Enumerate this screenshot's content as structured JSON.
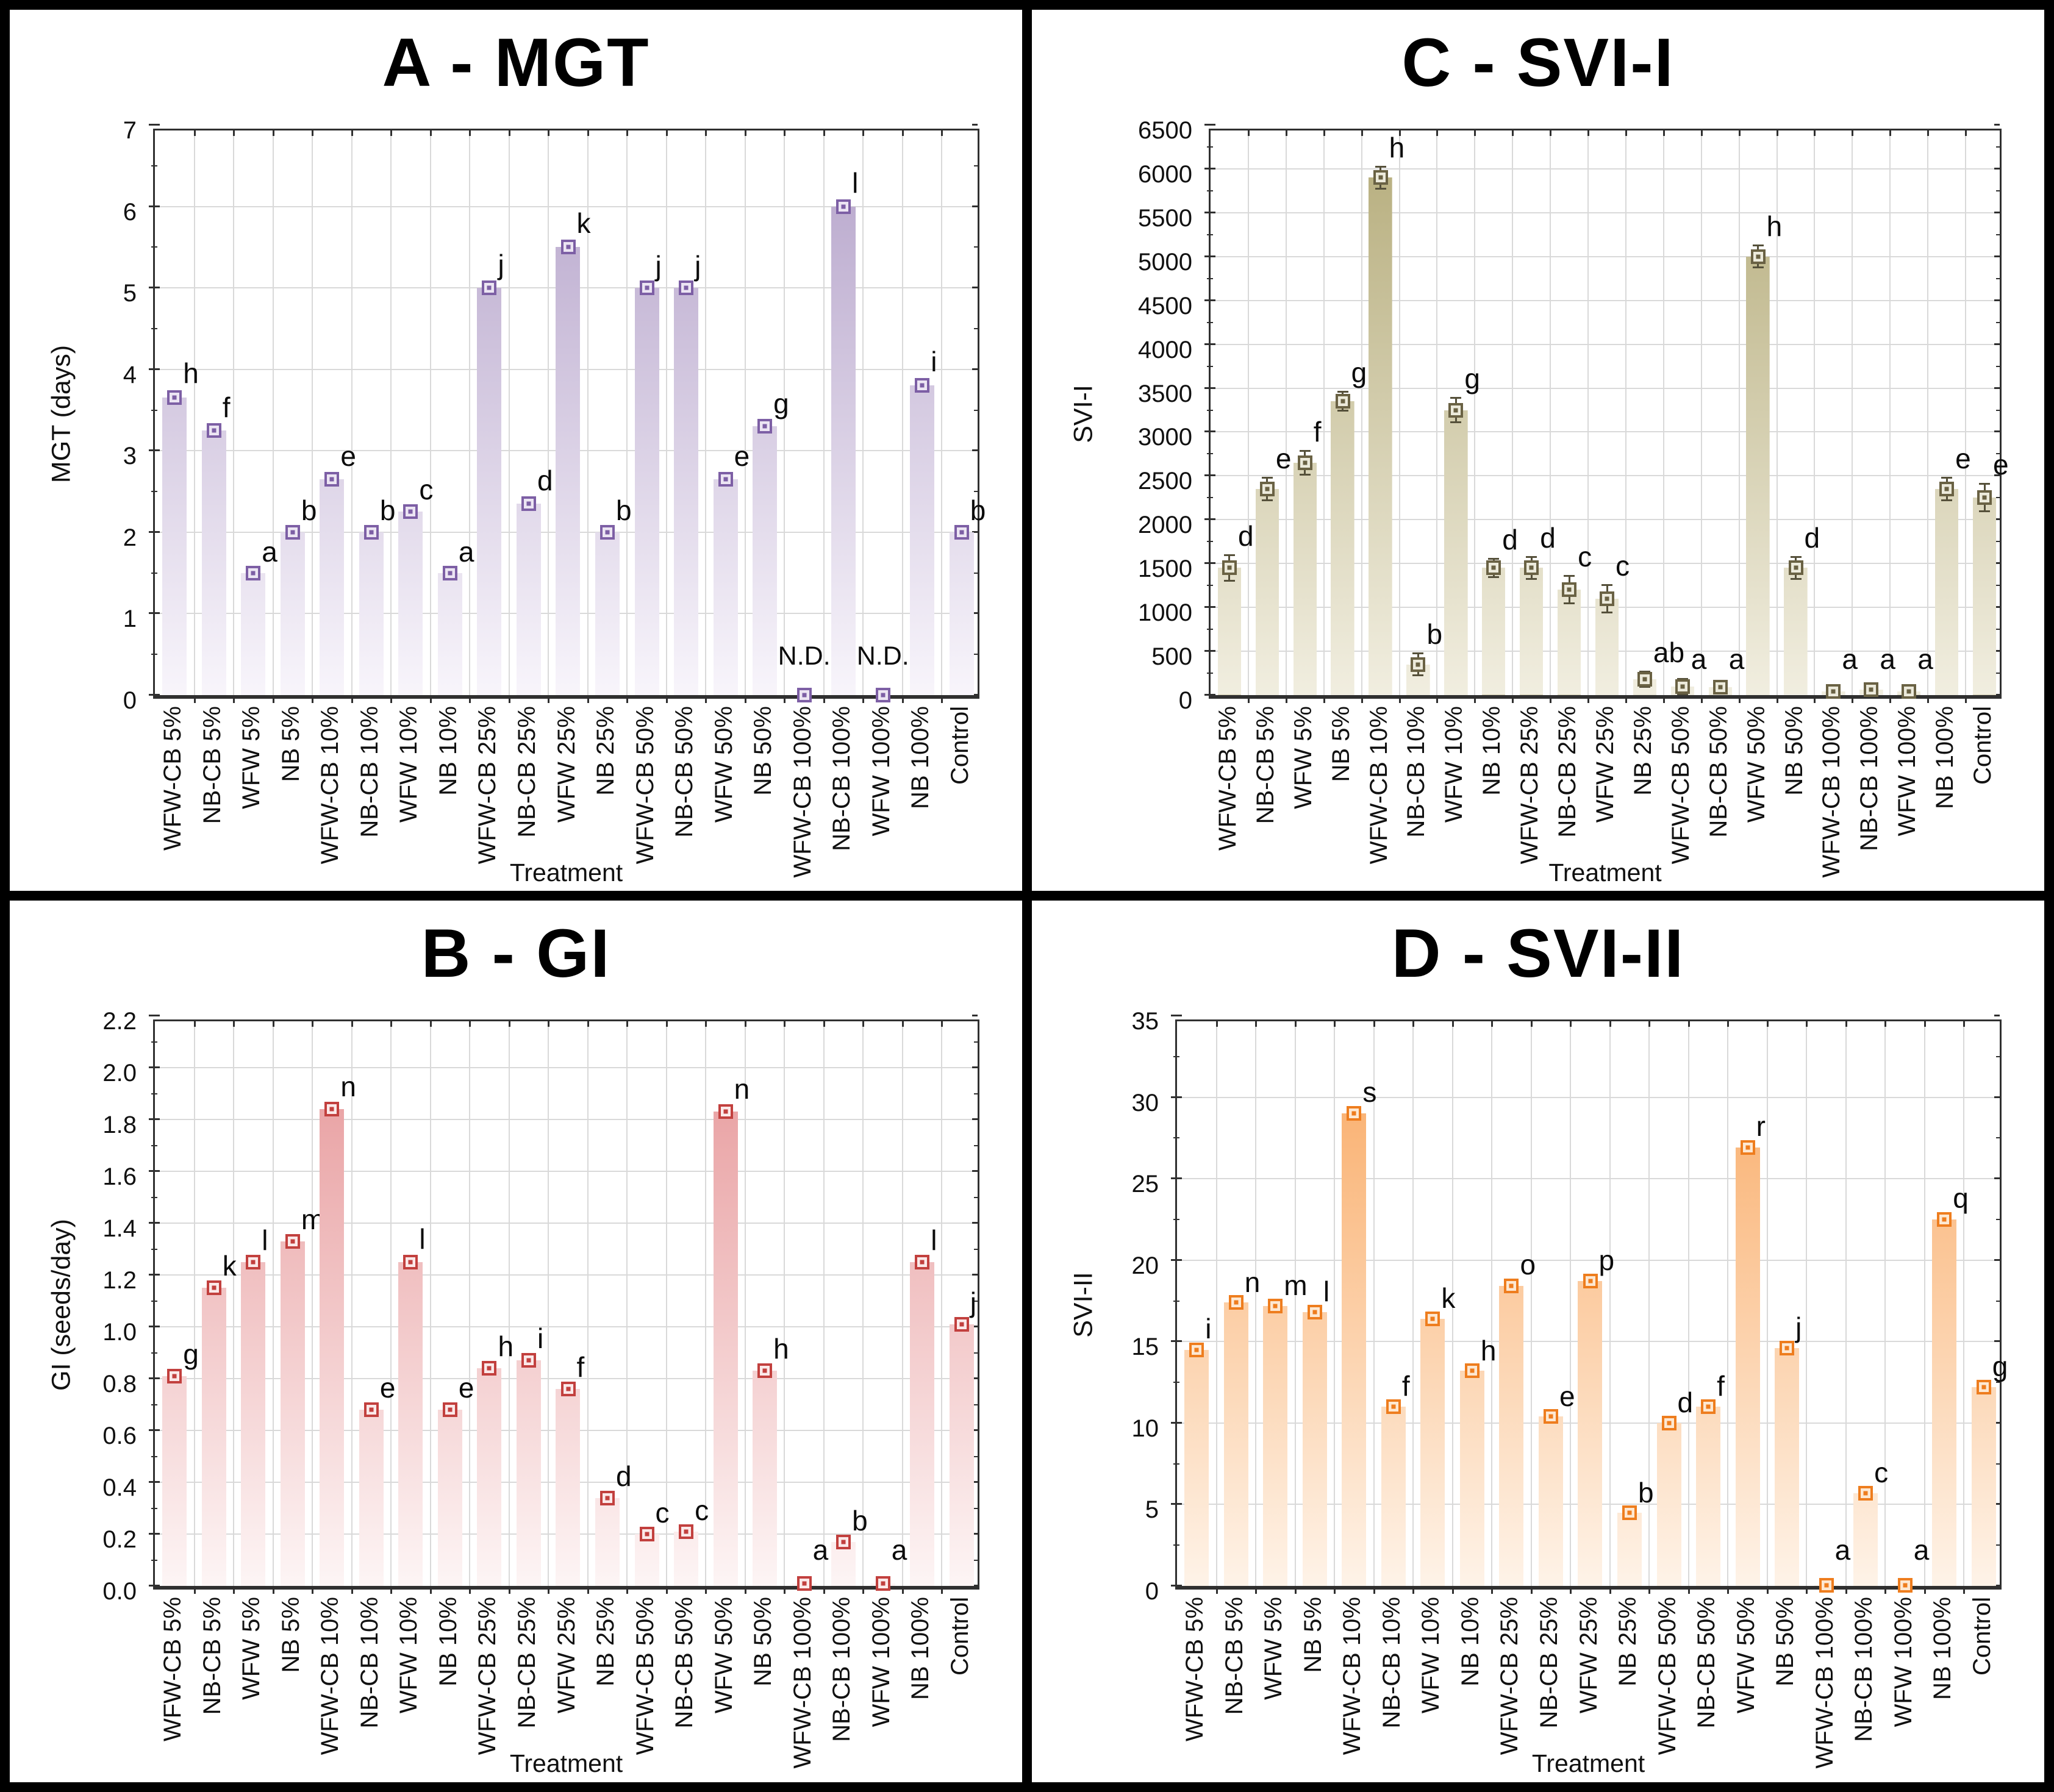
{
  "figure": {
    "xlabel_shared": "Treatment",
    "panel_grid_order": [
      "top-left",
      "top-right",
      "bottom-left",
      "bottom-right"
    ],
    "nd_note": "N.D. shown where no bar is drawn"
  },
  "chart_data": [
    {
      "type": "bar",
      "panel": "A",
      "position": "top-left",
      "title": "A - MGT",
      "ylabel": "MGT (days)",
      "xlabel": "Treatment",
      "ylim": [
        0,
        7
      ],
      "ytick_step": 1,
      "ytick_decimals": 0,
      "grid": true,
      "legend_position": "none",
      "bar_color_top": "#b4a2c9",
      "bar_color_bottom": "#f8f5fb",
      "marker_color": "#7d5fa5",
      "marker_fill": "#ece5f3",
      "error_color": "#5f4583",
      "categories": [
        "WFW-CB 5%",
        "NB-CB 5%",
        "WFW 5%",
        "NB 5%",
        "WFW-CB 10%",
        "NB-CB 10%",
        "WFW 10%",
        "NB 10%",
        "WFW-CB 25%",
        "NB-CB 25%",
        "WFW 25%",
        "NB 25%",
        "WFW-CB 50%",
        "NB-CB 50%",
        "WFW 50%",
        "NB 50%",
        "WFW-CB 100%",
        "NB-CB 100%",
        "WFW 100%",
        "NB 100%",
        "Control"
      ],
      "values": [
        3.65,
        3.25,
        1.5,
        2.0,
        2.65,
        2.0,
        2.25,
        1.5,
        5.0,
        2.35,
        5.5,
        2.0,
        5.0,
        5.0,
        2.65,
        3.3,
        0,
        6.0,
        0,
        3.8,
        2.0
      ],
      "errors": [
        0.07,
        0.05,
        0.03,
        0.04,
        0.05,
        0.04,
        0.04,
        0.03,
        0.05,
        0.05,
        0.06,
        0.04,
        0.04,
        0.04,
        0.05,
        0.05,
        0,
        0.06,
        0,
        0.06,
        0.04
      ],
      "letters": [
        "h",
        "f",
        "a",
        "b",
        "e",
        "b",
        "c",
        "a",
        "j",
        "d",
        "k",
        "b",
        "j",
        "j",
        "e",
        "g",
        "N.D.",
        "l",
        "N.D.",
        "i",
        "b"
      ]
    },
    {
      "type": "bar",
      "panel": "C",
      "position": "top-right",
      "title": "C - SVI-I",
      "ylabel": "SVI-I",
      "xlabel": "Treatment",
      "ylim": [
        0,
        6500
      ],
      "ytick_step": 500,
      "ytick_decimals": 0,
      "grid": true,
      "legend_position": "none",
      "bar_color_top": "#b4ab79",
      "bar_color_bottom": "#f1eee0",
      "marker_color": "#6a6244",
      "marker_fill": "#eceadb",
      "error_color": "#55503a",
      "categories": [
        "WFW-CB 5%",
        "NB-CB 5%",
        "WFW 5%",
        "NB 5%",
        "WFW-CB 10%",
        "NB-CB 10%",
        "WFW 10%",
        "NB 10%",
        "WFW-CB 25%",
        "NB-CB 25%",
        "WFW 25%",
        "NB 25%",
        "WFW-CB 50%",
        "NB-CB 50%",
        "WFW 50%",
        "NB 50%",
        "WFW-CB 100%",
        "NB-CB 100%",
        "WFW 100%",
        "NB 100%",
        "Control"
      ],
      "values": [
        1450,
        2350,
        2650,
        3350,
        5900,
        350,
        3250,
        1450,
        1450,
        1200,
        1100,
        180,
        100,
        90,
        5000,
        1450,
        40,
        60,
        40,
        2350,
        2250
      ],
      "errors": [
        150,
        130,
        140,
        110,
        130,
        130,
        140,
        110,
        130,
        160,
        160,
        90,
        90,
        60,
        130,
        130,
        30,
        60,
        30,
        130,
        160
      ],
      "letters": [
        "d",
        "e",
        "f",
        "g",
        "h",
        "b",
        "g",
        "d",
        "d",
        "c",
        "c",
        "ab",
        "a",
        "a",
        "h",
        "d",
        "a",
        "a",
        "a",
        "e",
        "e"
      ]
    },
    {
      "type": "bar",
      "panel": "B",
      "position": "bottom-left",
      "title": "B - GI",
      "ylabel": "GI (seeds/day)",
      "xlabel": "Treatment",
      "ylim": [
        0,
        2.2
      ],
      "ytick_step": 0.2,
      "ytick_decimals": 1,
      "grid": true,
      "legend_position": "none",
      "bar_color_top": "#e69597",
      "bar_color_bottom": "#fdf5f5",
      "marker_color": "#c2403e",
      "marker_fill": "#fbe9e9",
      "error_color": "#a03634",
      "categories": [
        "WFW-CB 5%",
        "NB-CB 5%",
        "WFW 5%",
        "NB 5%",
        "WFW-CB 10%",
        "NB-CB 10%",
        "WFW 10%",
        "NB 10%",
        "WFW-CB 25%",
        "NB-CB 25%",
        "WFW 25%",
        "NB 25%",
        "WFW-CB 50%",
        "NB-CB 50%",
        "WFW 50%",
        "NB 50%",
        "WFW-CB 100%",
        "NB-CB 100%",
        "WFW 100%",
        "NB 100%",
        "Control"
      ],
      "values": [
        0.81,
        1.15,
        1.25,
        1.33,
        1.84,
        0.68,
        1.25,
        0.68,
        0.84,
        0.87,
        0.76,
        0.34,
        0.2,
        0.21,
        1.83,
        0.83,
        0.01,
        0.17,
        0.01,
        1.25,
        1.01
      ],
      "errors": [
        0.012,
        0.012,
        0.012,
        0.012,
        0.015,
        0.012,
        0.015,
        0.012,
        0.012,
        0.012,
        0.012,
        0.01,
        0.01,
        0.01,
        0.015,
        0.012,
        0.004,
        0.01,
        0.004,
        0.012,
        0.012
      ],
      "letters": [
        "g",
        "k",
        "l",
        "m",
        "n",
        "e",
        "l",
        "e",
        "h",
        "i",
        "f",
        "d",
        "c",
        "c",
        "n",
        "h",
        "a",
        "b",
        "a",
        "l",
        "j"
      ]
    },
    {
      "type": "bar",
      "panel": "D",
      "position": "bottom-right",
      "title": "D - SVI-II",
      "ylabel": "SVI-II",
      "xlabel": "Treatment",
      "ylim": [
        0,
        35
      ],
      "ytick_step": 5,
      "ytick_decimals": 0,
      "grid": true,
      "legend_position": "none",
      "bar_color_top": "#f9a75f",
      "bar_color_bottom": "#fef3e8",
      "marker_color": "#ee7d1e",
      "marker_fill": "#fde8d2",
      "error_color": "#c86a14",
      "categories": [
        "WFW-CB 5%",
        "NB-CB 5%",
        "WFW 5%",
        "NB 5%",
        "WFW-CB 10%",
        "NB-CB 10%",
        "WFW 10%",
        "NB 10%",
        "WFW-CB 25%",
        "NB-CB 25%",
        "WFW 25%",
        "NB 25%",
        "WFW-CB 50%",
        "NB-CB 50%",
        "WFW 50%",
        "NB 50%",
        "WFW-CB 100%",
        "NB-CB 100%",
        "WFW 100%",
        "NB 100%",
        "Control"
      ],
      "values": [
        14.5,
        17.4,
        17.2,
        16.8,
        29.0,
        11.0,
        16.4,
        13.2,
        18.4,
        10.4,
        18.7,
        4.5,
        10.0,
        11.0,
        26.9,
        14.6,
        0.05,
        5.7,
        0.05,
        22.5,
        12.2
      ],
      "errors": [
        0.15,
        0.1,
        0.1,
        0.12,
        0.15,
        0.1,
        0.12,
        0.1,
        0.15,
        0.1,
        0.12,
        0.08,
        0.1,
        0.1,
        0.15,
        0.12,
        0,
        0.1,
        0,
        0.15,
        0.1
      ],
      "letters": [
        "i",
        "n",
        "m",
        "l",
        "s",
        "f",
        "k",
        "h",
        "o",
        "e",
        "p",
        "b",
        "d",
        "f",
        "r",
        "j",
        "a",
        "c",
        "a",
        "q",
        "g"
      ]
    }
  ]
}
